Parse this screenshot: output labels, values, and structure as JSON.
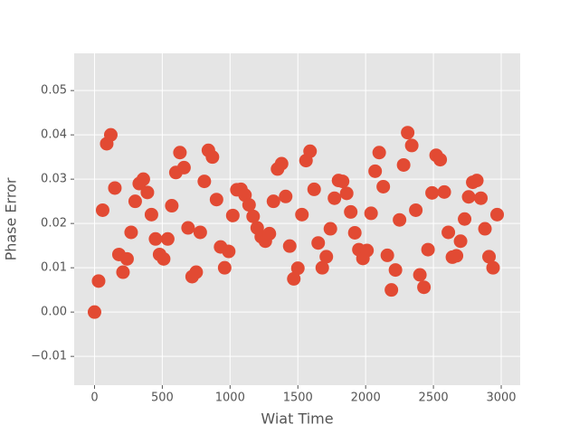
{
  "chart_data": {
    "type": "scatter",
    "xlabel": "Wiat Time",
    "ylabel": "Phase Error",
    "color": "#E24A33",
    "grid": true,
    "xlim": [
      -150,
      3140
    ],
    "ylim": [
      -0.0165,
      0.0584
    ],
    "xticks": [
      0,
      500,
      1000,
      1500,
      2000,
      2500,
      3000
    ],
    "yticks": [
      {
        "value": -0.01,
        "label": "−0.01"
      },
      {
        "value": 0,
        "label": "0.00"
      },
      {
        "value": 0.01,
        "label": "0.01"
      },
      {
        "value": 0.02,
        "label": "0.02"
      },
      {
        "value": 0.03,
        "label": "0.03"
      },
      {
        "value": 0.04,
        "label": "0.04"
      },
      {
        "value": 0.05,
        "label": "0.05"
      }
    ],
    "x": [
      0,
      30,
      60,
      90,
      120,
      150,
      180,
      210,
      240,
      270,
      300,
      330,
      360,
      390,
      420,
      450,
      480,
      510,
      540,
      570,
      600,
      630,
      660,
      690,
      720,
      750,
      780,
      810,
      840,
      870,
      900,
      930,
      960,
      990,
      1020,
      1050,
      1080,
      1110,
      1140,
      1170,
      1200,
      1230,
      1260,
      1290,
      1320,
      1350,
      1380,
      1410,
      1440,
      1470,
      1500,
      1530,
      1560,
      1590,
      1620,
      1650,
      1680,
      1710,
      1740,
      1770,
      1800,
      1830,
      1860,
      1890,
      1920,
      1950,
      1980,
      2010,
      2040,
      2070,
      2100,
      2130,
      2160,
      2190,
      2220,
      2250,
      2280,
      2310,
      2340,
      2370,
      2400,
      2430,
      2460,
      2490,
      2520,
      2550,
      2580,
      2610,
      2640,
      2670,
      2700,
      2730,
      2760,
      2790,
      2820,
      2850,
      2880,
      2910,
      2940,
      2970
    ],
    "values": [
      0.0,
      0.007,
      0.023,
      0.038,
      0.04,
      0.028,
      0.013,
      0.009,
      0.012,
      0.018,
      0.025,
      0.029,
      0.03,
      0.027,
      0.022,
      0.0165,
      0.013,
      0.012,
      0.0165,
      0.024,
      0.0315,
      0.036,
      0.0326,
      0.019,
      0.008,
      0.009,
      0.018,
      0.0295,
      0.0365,
      0.035,
      0.0254,
      0.0147,
      0.01,
      0.0137,
      0.0218,
      0.0276,
      0.0277,
      0.0264,
      0.0242,
      0.0216,
      0.019,
      0.017,
      0.016,
      0.0177,
      0.025,
      0.0323,
      0.0335,
      0.0261,
      0.0149,
      0.0075,
      0.0099,
      0.022,
      0.0342,
      0.0363,
      0.0277,
      0.0156,
      0.01,
      0.0125,
      0.0188,
      0.0257,
      0.0297,
      0.0295,
      0.0268,
      0.0226,
      0.0179,
      0.0141,
      0.0121,
      0.0139,
      0.0223,
      0.0318,
      0.036,
      0.0283,
      0.0128,
      0.005,
      0.0095,
      0.0208,
      0.0332,
      0.0405,
      0.0376,
      0.023,
      0.0084,
      0.0056,
      0.0141,
      0.0269,
      0.0354,
      0.0344,
      0.0271,
      0.018,
      0.0124,
      0.0127,
      0.016,
      0.021,
      0.026,
      0.0293,
      0.0297,
      0.0257,
      0.0188,
      0.0125,
      0.01,
      0.022
    ]
  }
}
